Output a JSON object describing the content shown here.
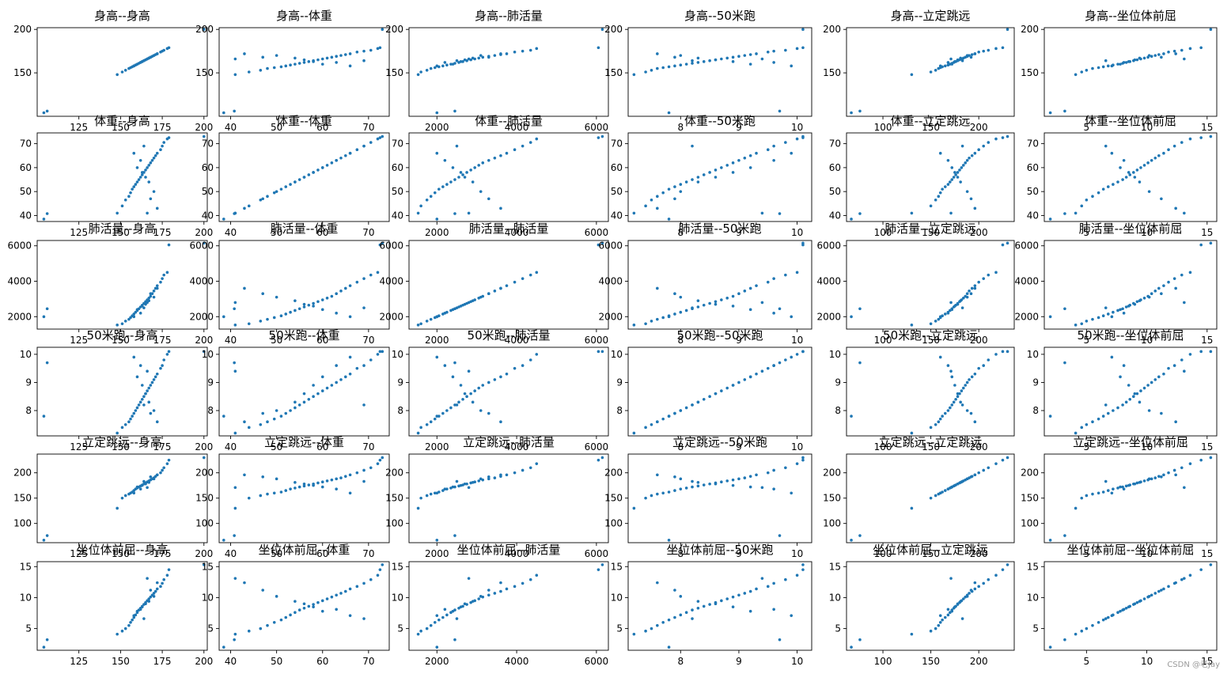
{
  "figure": {
    "watermark": "CSDN @老Jay",
    "point_color": "#1f77b4"
  },
  "chart_data": {
    "type": "scatter",
    "title": "",
    "variables": [
      "身高",
      "体重",
      "肺活量",
      "50米跑",
      "立定跳远",
      "坐位体前屈"
    ],
    "title_separator": "--",
    "axis_ranges": {
      "身高": [
        100,
        202
      ],
      "体重": [
        37.5,
        74.5
      ],
      "肺活量": [
        1300,
        6300
      ],
      "50米跑": [
        7.1,
        10.25
      ],
      "立定跳远": [
        62,
        237
      ],
      "坐位体前屈": [
        1.5,
        15.8
      ]
    },
    "axis_ticks": {
      "身高": [
        150,
        200
      ],
      "体重": [
        40,
        50,
        60,
        70
      ],
      "肺活量": [
        2000,
        4000,
        6000
      ],
      "50米跑": [
        8,
        9,
        10
      ],
      "立定跳远": [
        100,
        150,
        200
      ],
      "坐位体前屈": [
        5,
        10,
        15
      ]
    },
    "x_axis_ticks": {
      "身高": [
        125,
        150,
        175,
        200
      ],
      "体重": [
        40,
        50,
        60,
        70
      ],
      "肺活量": [
        2000,
        4000,
        6000
      ],
      "50米跑": [
        8,
        9,
        10
      ],
      "立定跳远": [
        100,
        150,
        200
      ],
      "坐位体前屈": [
        5,
        10,
        15
      ]
    },
    "summary": {
      "身高": {
        "min": 104,
        "max": 200,
        "mean": 165
      },
      "体重": {
        "min": 38,
        "max": 73,
        "mean": 56
      },
      "肺活量": {
        "min": 1500,
        "max": 6200,
        "mean": 2700
      },
      "50米跑": {
        "min": 7.2,
        "max": 10.1,
        "mean": 8.7
      },
      "立定跳远": {
        "min": 67,
        "max": 230,
        "mean": 178
      },
      "坐位体前屈": {
        "min": 2,
        "max": 15.3,
        "mean": 9
      }
    },
    "samples": [
      [
        104,
        38.5,
        2000,
        7.8,
        67,
        2.0
      ],
      [
        106,
        40.8,
        2450,
        9.7,
        76,
        3.2
      ],
      [
        148,
        41.0,
        1530,
        7.2,
        130,
        4.1
      ],
      [
        151,
        44.0,
        1600,
        7.4,
        150,
        4.6
      ],
      [
        153,
        46.5,
        1750,
        7.5,
        155,
        5.0
      ],
      [
        155,
        48.0,
        1850,
        7.6,
        158,
        5.5
      ],
      [
        156,
        49.5,
        1950,
        7.7,
        160,
        6.0
      ],
      [
        157,
        51.0,
        2050,
        7.8,
        162,
        6.4
      ],
      [
        158,
        52.0,
        2150,
        7.9,
        165,
        6.8
      ],
      [
        159,
        53.0,
        2250,
        8.0,
        168,
        7.2
      ],
      [
        160,
        54.0,
        2350,
        8.1,
        170,
        7.6
      ],
      [
        161,
        55.0,
        2450,
        8.2,
        172,
        8.0
      ],
      [
        162,
        56.0,
        2550,
        8.3,
        174,
        8.3
      ],
      [
        163,
        57.0,
        2650,
        8.4,
        176,
        8.6
      ],
      [
        164,
        58.0,
        2750,
        8.5,
        178,
        8.9
      ],
      [
        165,
        59.0,
        2850,
        8.6,
        180,
        9.2
      ],
      [
        166,
        60.0,
        2950,
        8.7,
        182,
        9.5
      ],
      [
        167,
        61.0,
        3050,
        8.8,
        184,
        9.8
      ],
      [
        168,
        62.0,
        3150,
        8.9,
        186,
        10.1
      ],
      [
        169,
        63.0,
        3300,
        9.0,
        188,
        10.4
      ],
      [
        170,
        64.0,
        3450,
        9.1,
        190,
        10.7
      ],
      [
        171,
        65.0,
        3600,
        9.2,
        193,
        11.0
      ],
      [
        172,
        66.0,
        3750,
        9.3,
        196,
        11.4
      ],
      [
        174,
        67.5,
        3950,
        9.5,
        200,
        11.8
      ],
      [
        175,
        69.0,
        4150,
        9.6,
        205,
        12.3
      ],
      [
        176,
        70.5,
        4350,
        9.8,
        210,
        12.9
      ],
      [
        178,
        72.0,
        4500,
        10.0,
        218,
        13.6
      ],
      [
        179,
        72.5,
        6050,
        10.1,
        225,
        14.5
      ],
      [
        200,
        73.0,
        6150,
        10.1,
        230,
        15.3
      ],
      [
        165,
        56.0,
        2700,
        8.6,
        178,
        9.0
      ],
      [
        163,
        58.0,
        2600,
        8.9,
        175,
        8.5
      ],
      [
        167,
        54.0,
        2900,
        8.3,
        181,
        9.4
      ],
      [
        160,
        60.0,
        2400,
        9.2,
        172,
        7.8
      ],
      [
        170,
        50.0,
        3100,
        8.0,
        188,
        10.2
      ],
      [
        162,
        63.0,
        2200,
        9.6,
        168,
        8.1
      ],
      [
        168,
        47.0,
        3300,
        7.9,
        192,
        11.2
      ],
      [
        158,
        66.0,
        2000,
        9.9,
        160,
        7.1
      ],
      [
        172,
        43.0,
        3600,
        7.6,
        196,
        12.4
      ],
      [
        164,
        69.0,
        2500,
        8.2,
        183,
        6.6
      ],
      [
        166,
        41.0,
        2800,
        9.4,
        171,
        13.1
      ]
    ]
  }
}
